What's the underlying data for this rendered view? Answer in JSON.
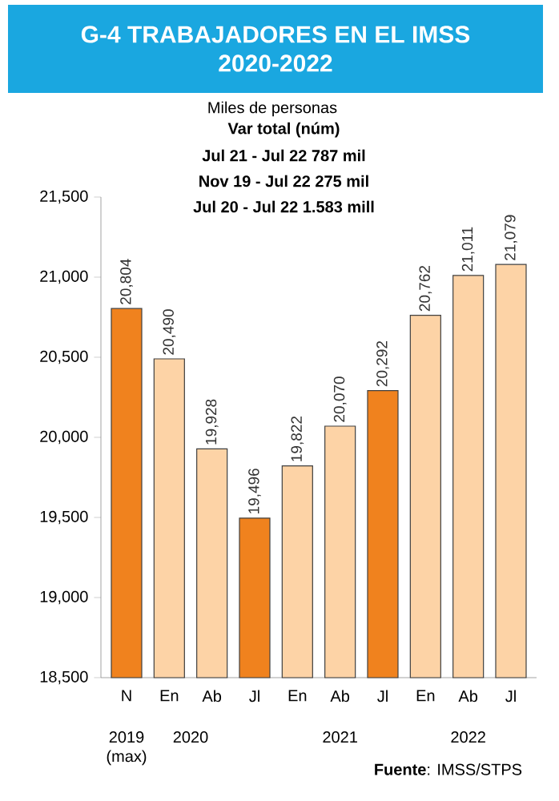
{
  "chart_data": {
    "type": "bar",
    "title": "G-4  TRABAJADORES EN EL IMSS 2020-2022",
    "subtitle": "Miles de personas",
    "categories": [
      "N",
      "En",
      "Ab",
      "Jl",
      "En",
      "Ab",
      "Jl",
      "En",
      "Ab",
      "Jl"
    ],
    "values": [
      20804,
      20490,
      19928,
      19496,
      19822,
      20070,
      20292,
      20762,
      21011,
      21079
    ],
    "value_labels": [
      "20,804",
      "20,490",
      "19,928",
      "19,496",
      "19,822",
      "20,070",
      "20,292",
      "20,762",
      "21,011",
      "21,079"
    ],
    "colors": [
      "#f0821e",
      "#fdd3a6",
      "#fdd3a6",
      "#f0821e",
      "#fdd3a6",
      "#fdd3a6",
      "#f0821e",
      "#fdd3a6",
      "#fdd3a6",
      "#fdd3a6"
    ],
    "ylim": [
      18500,
      21500
    ],
    "yticks": [
      {
        "value": 18500,
        "label": "18,500"
      },
      {
        "value": 19000,
        "label": "19,000"
      },
      {
        "value": 19500,
        "label": "19,500"
      },
      {
        "value": 20000,
        "label": "20,000"
      },
      {
        "value": 20500,
        "label": "20,500"
      },
      {
        "value": 21000,
        "label": "21,000"
      },
      {
        "value": 21500,
        "label": "21,500"
      }
    ],
    "grid": false,
    "annotations": [
      "Var total (núm)",
      "Jul 21 - Jul 22 787 mil",
      "Nov 19 - Jul 22 275 mil",
      "Jul 20 - Jul 22 1.583 mill",
      "2019 (max)",
      "2020",
      "2021",
      "2022",
      "**Fuente**: IMSS/STPS"
    ]
  }
}
